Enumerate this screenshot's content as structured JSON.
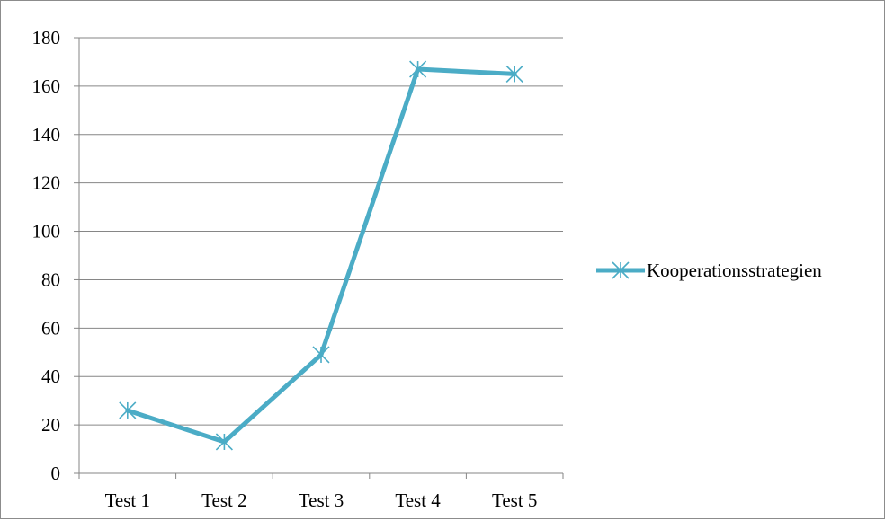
{
  "chart_data": {
    "type": "line",
    "categories": [
      "Test 1",
      "Test 2",
      "Test 3",
      "Test 4",
      "Test 5"
    ],
    "series": [
      {
        "name": "Kooperationsstrategien",
        "values": [
          26,
          13,
          49,
          167,
          165
        ],
        "color": "#4bacc6",
        "marker": "asterisk-x"
      }
    ],
    "ylim": [
      0,
      180
    ],
    "yticks": [
      0,
      20,
      40,
      60,
      80,
      100,
      120,
      140,
      160,
      180
    ],
    "grid": true,
    "legend_position": "right",
    "title": "",
    "xlabel": "",
    "ylabel": ""
  }
}
